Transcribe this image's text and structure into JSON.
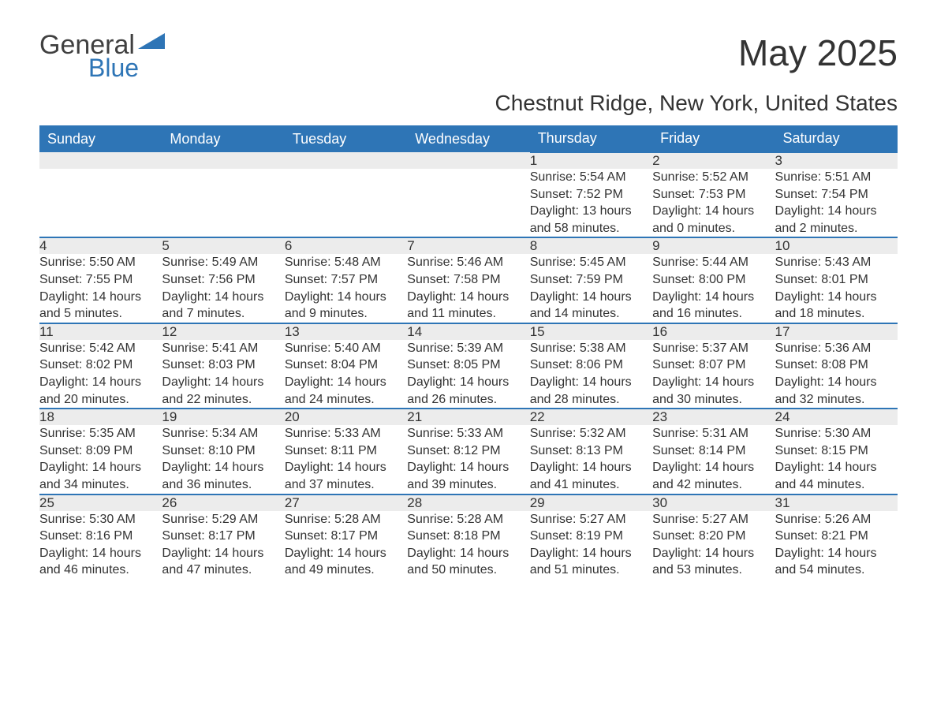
{
  "brand": {
    "line1": "General",
    "line2": "Blue",
    "triangle_color": "#2e75b6"
  },
  "title": "May 2025",
  "location": "Chestnut Ridge, New York, United States",
  "colors": {
    "header_bg": "#2e75b6",
    "header_text": "#ffffff",
    "daynum_bg": "#ececec",
    "daynum_border": "#2e75b6",
    "body_text": "#333333",
    "page_bg": "#ffffff"
  },
  "day_headers": [
    "Sunday",
    "Monday",
    "Tuesday",
    "Wednesday",
    "Thursday",
    "Friday",
    "Saturday"
  ],
  "weeks": [
    [
      null,
      null,
      null,
      null,
      {
        "n": "1",
        "sr": "5:54 AM",
        "ss": "7:52 PM",
        "dl": "13 hours and 58 minutes."
      },
      {
        "n": "2",
        "sr": "5:52 AM",
        "ss": "7:53 PM",
        "dl": "14 hours and 0 minutes."
      },
      {
        "n": "3",
        "sr": "5:51 AM",
        "ss": "7:54 PM",
        "dl": "14 hours and 2 minutes."
      }
    ],
    [
      {
        "n": "4",
        "sr": "5:50 AM",
        "ss": "7:55 PM",
        "dl": "14 hours and 5 minutes."
      },
      {
        "n": "5",
        "sr": "5:49 AM",
        "ss": "7:56 PM",
        "dl": "14 hours and 7 minutes."
      },
      {
        "n": "6",
        "sr": "5:48 AM",
        "ss": "7:57 PM",
        "dl": "14 hours and 9 minutes."
      },
      {
        "n": "7",
        "sr": "5:46 AM",
        "ss": "7:58 PM",
        "dl": "14 hours and 11 minutes."
      },
      {
        "n": "8",
        "sr": "5:45 AM",
        "ss": "7:59 PM",
        "dl": "14 hours and 14 minutes."
      },
      {
        "n": "9",
        "sr": "5:44 AM",
        "ss": "8:00 PM",
        "dl": "14 hours and 16 minutes."
      },
      {
        "n": "10",
        "sr": "5:43 AM",
        "ss": "8:01 PM",
        "dl": "14 hours and 18 minutes."
      }
    ],
    [
      {
        "n": "11",
        "sr": "5:42 AM",
        "ss": "8:02 PM",
        "dl": "14 hours and 20 minutes."
      },
      {
        "n": "12",
        "sr": "5:41 AM",
        "ss": "8:03 PM",
        "dl": "14 hours and 22 minutes."
      },
      {
        "n": "13",
        "sr": "5:40 AM",
        "ss": "8:04 PM",
        "dl": "14 hours and 24 minutes."
      },
      {
        "n": "14",
        "sr": "5:39 AM",
        "ss": "8:05 PM",
        "dl": "14 hours and 26 minutes."
      },
      {
        "n": "15",
        "sr": "5:38 AM",
        "ss": "8:06 PM",
        "dl": "14 hours and 28 minutes."
      },
      {
        "n": "16",
        "sr": "5:37 AM",
        "ss": "8:07 PM",
        "dl": "14 hours and 30 minutes."
      },
      {
        "n": "17",
        "sr": "5:36 AM",
        "ss": "8:08 PM",
        "dl": "14 hours and 32 minutes."
      }
    ],
    [
      {
        "n": "18",
        "sr": "5:35 AM",
        "ss": "8:09 PM",
        "dl": "14 hours and 34 minutes."
      },
      {
        "n": "19",
        "sr": "5:34 AM",
        "ss": "8:10 PM",
        "dl": "14 hours and 36 minutes."
      },
      {
        "n": "20",
        "sr": "5:33 AM",
        "ss": "8:11 PM",
        "dl": "14 hours and 37 minutes."
      },
      {
        "n": "21",
        "sr": "5:33 AM",
        "ss": "8:12 PM",
        "dl": "14 hours and 39 minutes."
      },
      {
        "n": "22",
        "sr": "5:32 AM",
        "ss": "8:13 PM",
        "dl": "14 hours and 41 minutes."
      },
      {
        "n": "23",
        "sr": "5:31 AM",
        "ss": "8:14 PM",
        "dl": "14 hours and 42 minutes."
      },
      {
        "n": "24",
        "sr": "5:30 AM",
        "ss": "8:15 PM",
        "dl": "14 hours and 44 minutes."
      }
    ],
    [
      {
        "n": "25",
        "sr": "5:30 AM",
        "ss": "8:16 PM",
        "dl": "14 hours and 46 minutes."
      },
      {
        "n": "26",
        "sr": "5:29 AM",
        "ss": "8:17 PM",
        "dl": "14 hours and 47 minutes."
      },
      {
        "n": "27",
        "sr": "5:28 AM",
        "ss": "8:17 PM",
        "dl": "14 hours and 49 minutes."
      },
      {
        "n": "28",
        "sr": "5:28 AM",
        "ss": "8:18 PM",
        "dl": "14 hours and 50 minutes."
      },
      {
        "n": "29",
        "sr": "5:27 AM",
        "ss": "8:19 PM",
        "dl": "14 hours and 51 minutes."
      },
      {
        "n": "30",
        "sr": "5:27 AM",
        "ss": "8:20 PM",
        "dl": "14 hours and 53 minutes."
      },
      {
        "n": "31",
        "sr": "5:26 AM",
        "ss": "8:21 PM",
        "dl": "14 hours and 54 minutes."
      }
    ]
  ],
  "labels": {
    "sunrise": "Sunrise: ",
    "sunset": "Sunset: ",
    "daylight": "Daylight: "
  }
}
